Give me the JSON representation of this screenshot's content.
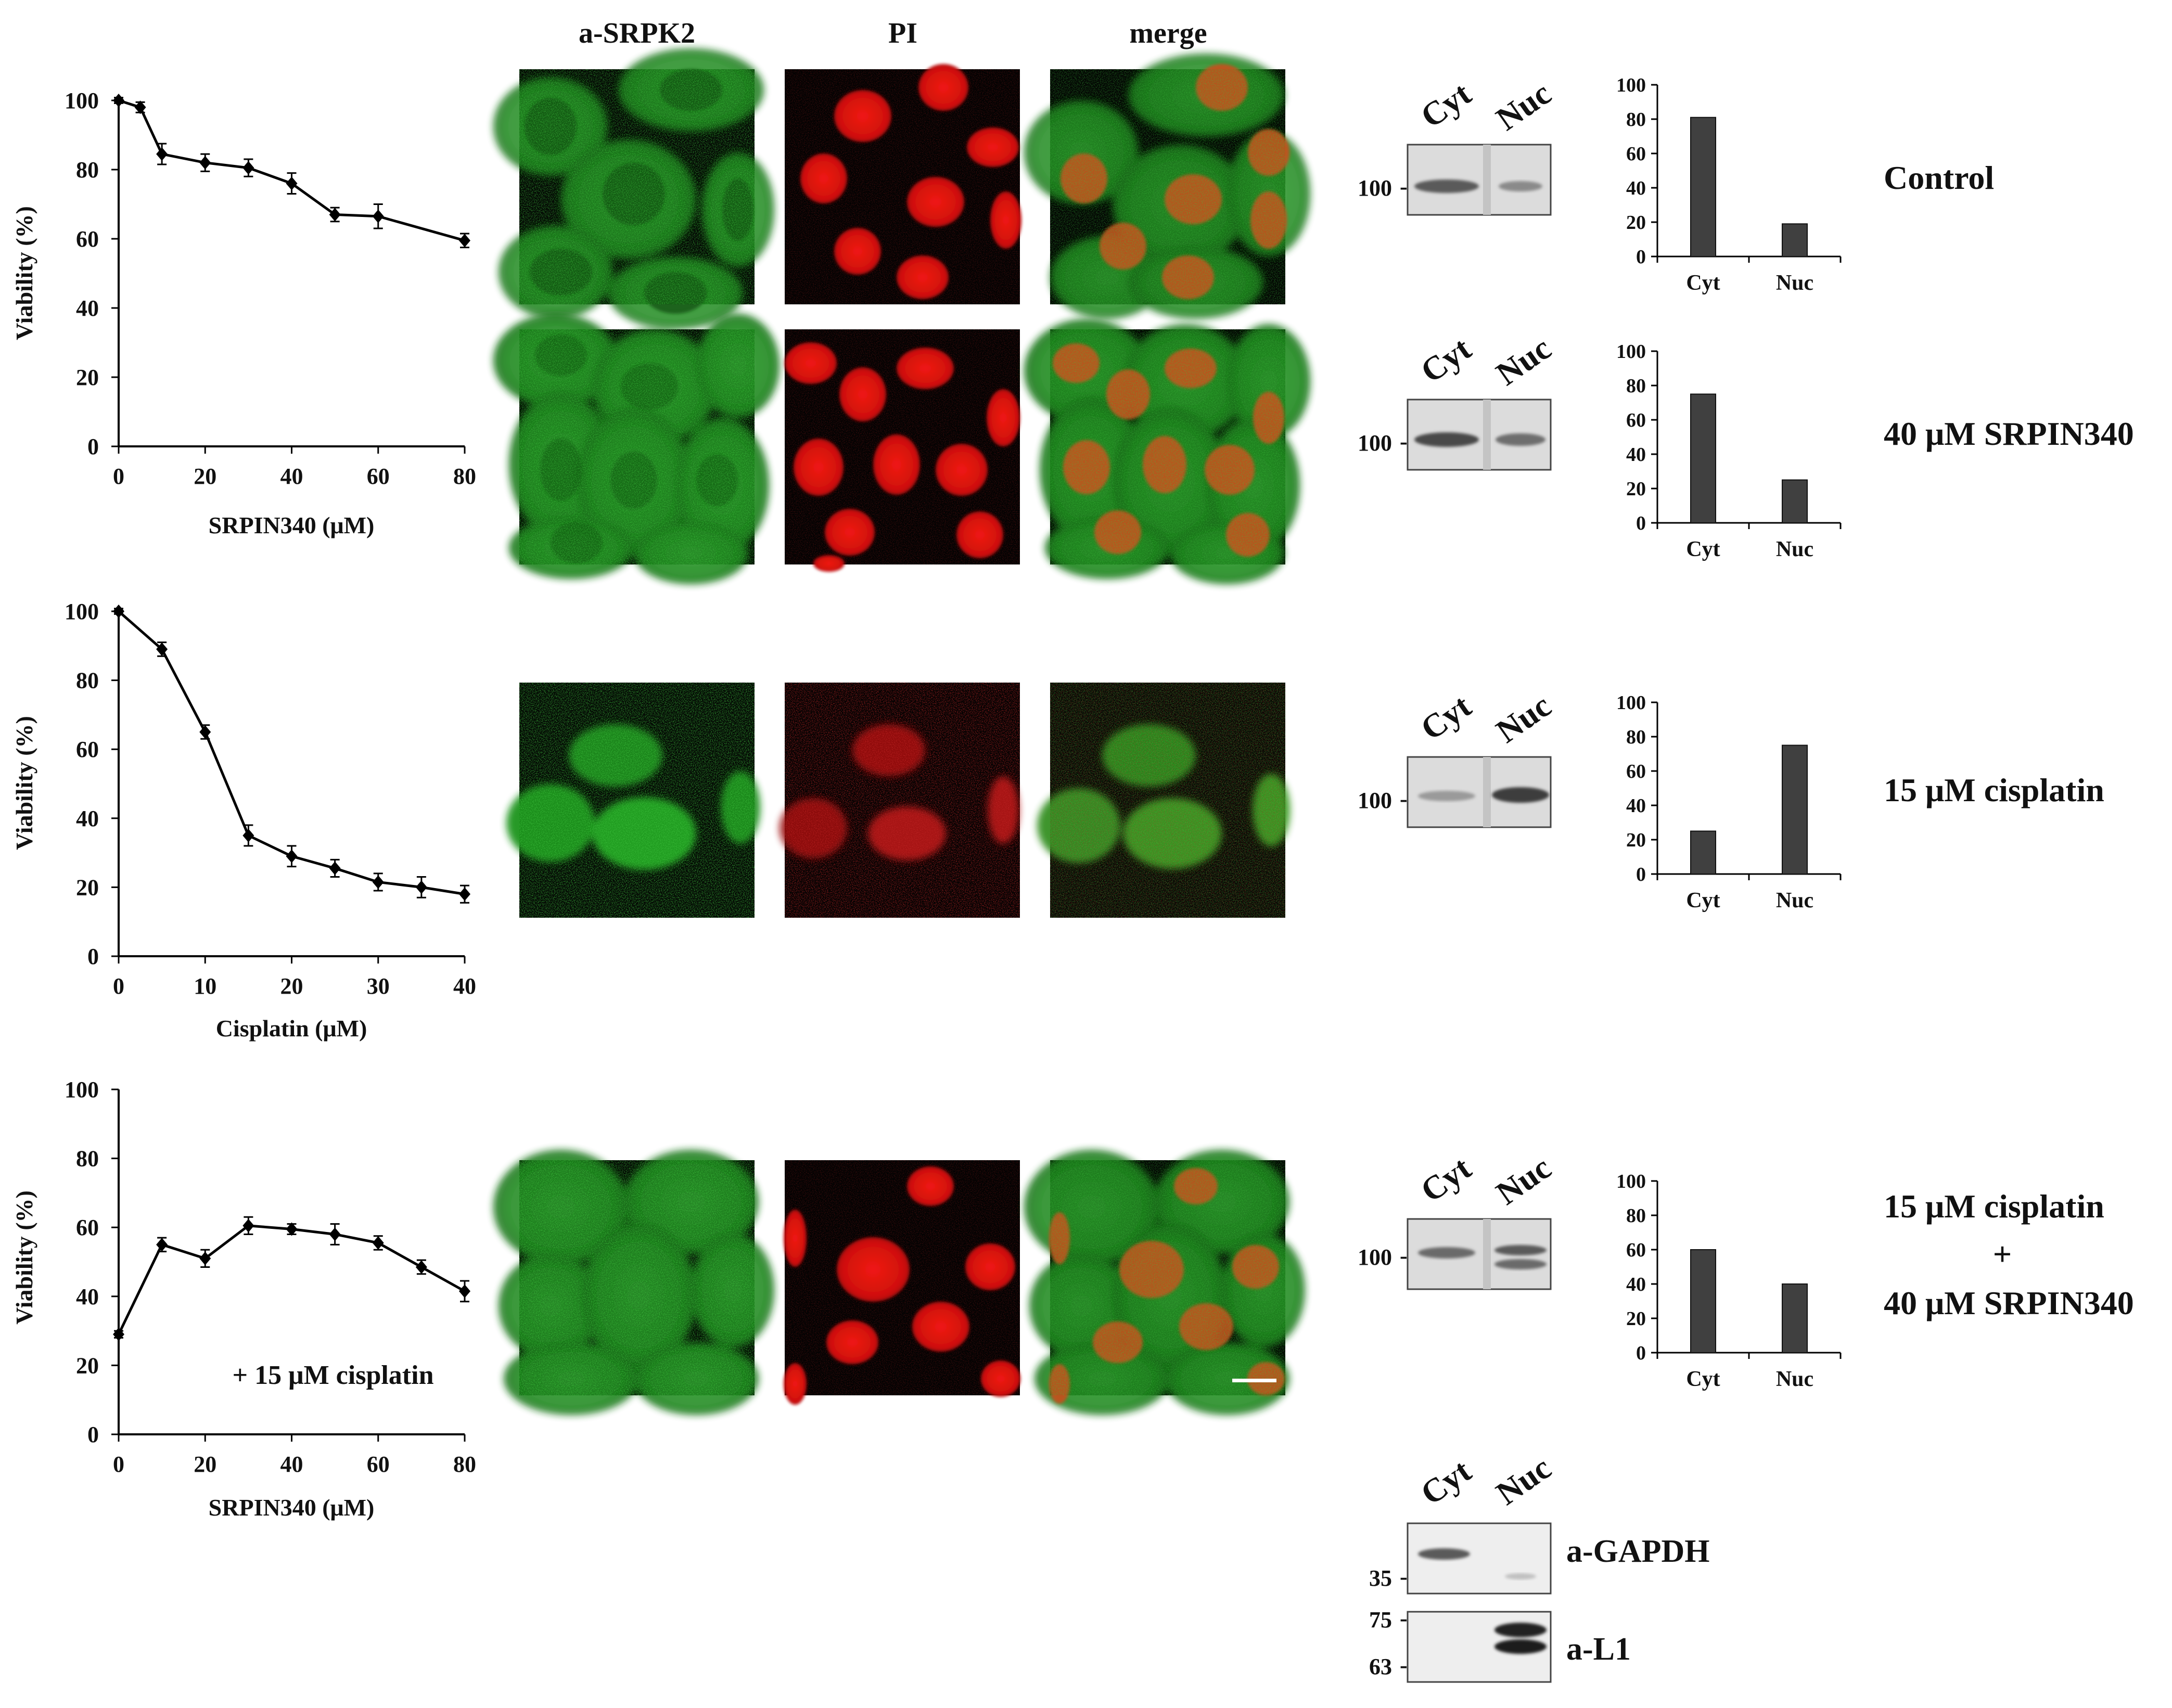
{
  "column_headers": [
    "a-SRPK2",
    "PI",
    "merge"
  ],
  "conditions": [
    "Control",
    "40 μM SRPIN340",
    "15 μM cisplatin",
    "15 μM cisplatin",
    "+",
    "40 μM SRPIN340"
  ],
  "blot_labels": {
    "lanes": [
      "Cyt",
      "Nuc"
    ],
    "marker_100": "100",
    "gapdh_marker": "35",
    "l1_markers": [
      "75",
      "63"
    ],
    "gapdh": "a-GAPDH",
    "l1": "a-L1"
  },
  "image_colors": {
    "green": "#23a023",
    "red": "#e01818",
    "background": "#020202"
  },
  "chart_data": [
    {
      "type": "line",
      "x": [
        0,
        5,
        10,
        20,
        30,
        40,
        50,
        60,
        80
      ],
      "y": [
        100,
        98,
        84.5,
        82,
        80.5,
        76,
        67,
        66.5,
        59.5
      ],
      "err": [
        0.8,
        1.5,
        3,
        2.5,
        2.5,
        3,
        2,
        3.5,
        2
      ],
      "xticks": [
        0,
        20,
        40,
        60,
        80
      ],
      "yticks": [
        0,
        20,
        40,
        60,
        80,
        100
      ],
      "xlim": [
        0,
        80
      ],
      "ylim": [
        0,
        100
      ],
      "xlabel": "SRPIN340 (μM)",
      "ylabel": "Viability (%)",
      "annotation": ""
    },
    {
      "type": "line",
      "x": [
        0,
        5,
        10,
        15,
        20,
        25,
        30,
        35,
        40
      ],
      "y": [
        100,
        89,
        65,
        35,
        29,
        25.5,
        21.5,
        20,
        18
      ],
      "err": [
        0.8,
        2,
        2,
        3,
        3,
        2.5,
        2.5,
        3,
        2.5
      ],
      "xticks": [
        0,
        10,
        20,
        30,
        40
      ],
      "yticks": [
        0,
        20,
        40,
        60,
        80,
        100
      ],
      "xlim": [
        0,
        40
      ],
      "ylim": [
        0,
        100
      ],
      "xlabel": "Cisplatin (μM)",
      "ylabel": "Viability (%)",
      "annotation": ""
    },
    {
      "type": "line",
      "x": [
        0,
        10,
        20,
        30,
        40,
        50,
        60,
        70,
        80
      ],
      "y": [
        29,
        55,
        51,
        60.5,
        59.5,
        58,
        55.5,
        48.5,
        41.5
      ],
      "err": [
        1,
        2,
        2.5,
        2.5,
        1.5,
        3,
        2,
        2,
        3
      ],
      "xticks": [
        0,
        20,
        40,
        60,
        80
      ],
      "yticks": [
        0,
        20,
        40,
        60,
        80,
        100
      ],
      "xlim": [
        0,
        80
      ],
      "ylim": [
        0,
        100
      ],
      "xlabel": "SRPIN340 (μM)",
      "ylabel": "Viability (%)",
      "annotation": "+ 15 μM cisplatin"
    },
    {
      "type": "bar",
      "categories": [
        "Cyt",
        "Nuc"
      ],
      "values": [
        81,
        19
      ],
      "yticks": [
        0,
        20,
        40,
        60,
        80,
        100
      ],
      "ylim": [
        0,
        100
      ]
    },
    {
      "type": "bar",
      "categories": [
        "Cyt",
        "Nuc"
      ],
      "values": [
        75,
        25
      ],
      "yticks": [
        0,
        20,
        40,
        60,
        80,
        100
      ],
      "ylim": [
        0,
        100
      ]
    },
    {
      "type": "bar",
      "categories": [
        "Cyt",
        "Nuc"
      ],
      "values": [
        25,
        75
      ],
      "yticks": [
        0,
        20,
        40,
        60,
        80,
        100
      ],
      "ylim": [
        0,
        100
      ]
    },
    {
      "type": "bar",
      "categories": [
        "Cyt",
        "Nuc"
      ],
      "values": [
        60,
        40
      ],
      "yticks": [
        0,
        20,
        40,
        60,
        80,
        100
      ],
      "ylim": [
        0,
        100
      ]
    }
  ]
}
